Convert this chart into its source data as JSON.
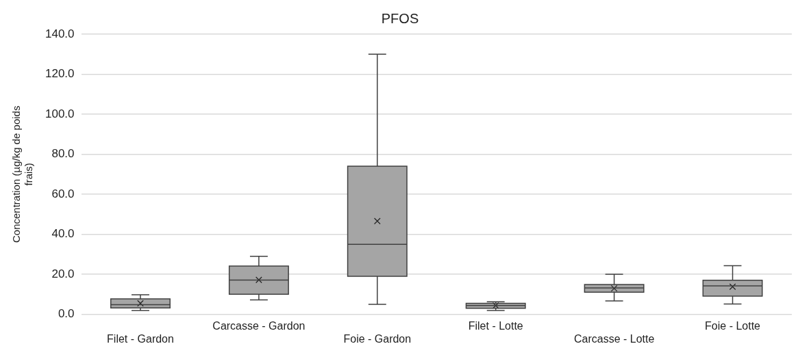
{
  "chart_data": {
    "type": "box",
    "title": "PFOS",
    "ylabel": "Concentration (µg/kg de poids frais)",
    "categories": [
      "Filet - Gardon",
      "Carcasse - Gardon",
      "Foie - Gardon",
      "Filet - Lotte",
      "Carcasse - Lotte",
      "Foie - Lotte"
    ],
    "series": [
      {
        "color": "#a5a5a5",
        "boxes": [
          {
            "low": 1.9,
            "q1": 3.2,
            "median": 4.8,
            "q3": 7.7,
            "high": 9.8,
            "mean": 5.5
          },
          {
            "low": 7.2,
            "q1": 10,
            "median": 17.1,
            "q3": 24.1,
            "high": 29,
            "mean": 17.2
          },
          {
            "low": 5,
            "q1": 19,
            "median": 35,
            "q3": 74,
            "high": 130,
            "mean": 46.6
          },
          {
            "low": 1.9,
            "q1": 3,
            "median": 4.4,
            "q3": 5.5,
            "high": 6.3,
            "mean": 4.4
          },
          {
            "low": 6.7,
            "q1": 11.1,
            "median": 13.2,
            "q3": 14.9,
            "high": 20,
            "mean": 13
          },
          {
            "low": 5.2,
            "q1": 9.1,
            "median": 14.2,
            "q3": 17,
            "high": 24.3,
            "mean": 13.8
          }
        ]
      }
    ],
    "ylim": [
      0,
      140
    ],
    "yticks": [
      {
        "value": 0,
        "label": "0.0"
      },
      {
        "value": 20,
        "label": "20.0"
      },
      {
        "value": 40,
        "label": "40.0"
      },
      {
        "value": 60,
        "label": "60.0"
      },
      {
        "value": 80,
        "label": "80.0"
      },
      {
        "value": 100,
        "label": "100.0"
      },
      {
        "value": 120,
        "label": "120.0"
      },
      {
        "value": 140,
        "label": "140.0"
      }
    ],
    "grid": "y",
    "legend": false,
    "marker": "cross"
  }
}
